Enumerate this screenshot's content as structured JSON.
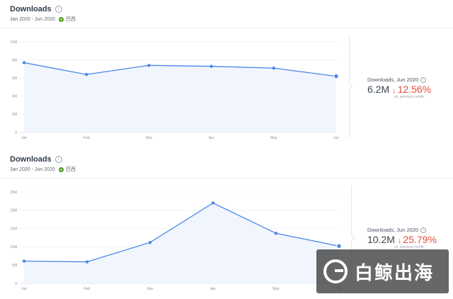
{
  "panels": [
    {
      "title": "Downloads",
      "date_range": "Jan 2020 - Jun 2020",
      "country": "巴西",
      "stat_label": "Downloads, Jun 2020",
      "stat_value": "6.2M",
      "stat_change": "12.56%",
      "stat_note": "vs. previous month"
    },
    {
      "title": "Downloads",
      "date_range": "Jan 2020 - Jun 2020",
      "country": "巴西",
      "stat_label": "Downloads, Jun 2020",
      "stat_value": "10.2M",
      "stat_change": "25.79%",
      "stat_note": "vs. previous month"
    }
  ],
  "watermark": {
    "text": "白鲸出海"
  },
  "colors": {
    "line": "#4a86e8",
    "fill": "#f1f5fd",
    "down": "#e0523f"
  },
  "chart_data": [
    {
      "type": "area",
      "title": "Downloads",
      "categories": [
        "Jan",
        "Feb",
        "Mar",
        "Apr",
        "May",
        "Jun"
      ],
      "values": [
        7.7,
        6.4,
        7.4,
        7.3,
        7.1,
        6.2
      ],
      "yticks": [
        "0",
        "2M",
        "4M",
        "6M",
        "8M",
        "10M"
      ],
      "ylim": [
        0,
        10
      ],
      "grid": true
    },
    {
      "type": "area",
      "title": "Downloads",
      "categories": [
        "Jan",
        "Feb",
        "Mar",
        "Apr",
        "May",
        "Jun"
      ],
      "values": [
        6.1,
        5.9,
        11.2,
        22.0,
        13.7,
        10.2
      ],
      "yticks": [
        "0",
        "5M",
        "10M",
        "15M",
        "20M",
        "25M"
      ],
      "ylim": [
        0,
        25
      ],
      "grid": true
    }
  ]
}
